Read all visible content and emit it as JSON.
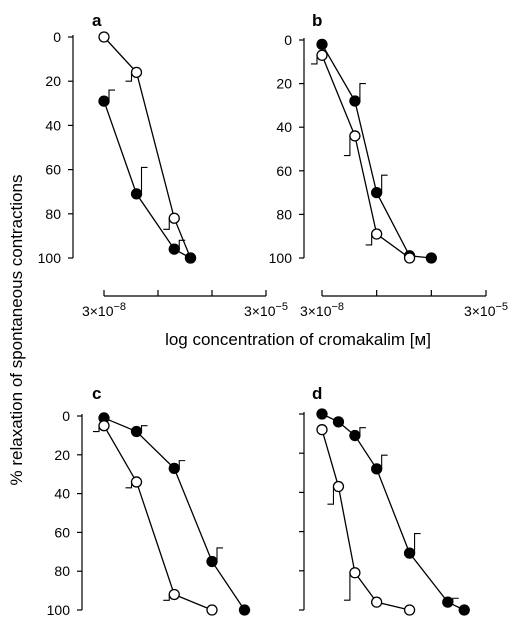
{
  "figure": {
    "ylabel": "% relaxation of spontaneous contractions",
    "xlabel": "log concentration of cromakalim [м]"
  },
  "chart_data": [
    {
      "panel": "a",
      "type": "line",
      "x_tick_labels": [
        "3×10−8",
        "3×10−5"
      ],
      "x_ticks": [
        -7.523,
        -4.523
      ],
      "y_tick_labels": [
        "0",
        "20",
        "40",
        "60",
        "80",
        "100"
      ],
      "ylim": [
        0,
        100
      ],
      "y_inverted": true,
      "series": [
        {
          "marker": "open-circle",
          "x": [
            -7.523,
            -6.921,
            -6.222,
            -5.921
          ],
          "y": [
            0,
            16,
            82,
            100
          ],
          "err": [
            0,
            4,
            5,
            0
          ]
        },
        {
          "marker": "filled-circle",
          "x": [
            -7.523,
            -6.921,
            -6.222,
            -5.921
          ],
          "y": [
            29,
            71,
            96,
            100
          ],
          "err": [
            5,
            12,
            4,
            0
          ]
        }
      ]
    },
    {
      "panel": "b",
      "type": "line",
      "x_tick_labels": [
        "3×10−8",
        "3×10−5"
      ],
      "x_ticks": [
        -7.523,
        -4.523
      ],
      "y_tick_labels": [
        "0",
        "20",
        "40",
        "60",
        "80",
        "100"
      ],
      "ylim": [
        0,
        100
      ],
      "y_inverted": true,
      "series": [
        {
          "marker": "filled-circle",
          "x": [
            -7.523,
            -6.921,
            -6.523,
            -5.921,
            -5.523
          ],
          "y": [
            2,
            28,
            70,
            99,
            100
          ],
          "err": [
            0,
            8,
            8,
            0,
            0
          ]
        },
        {
          "marker": "open-circle",
          "x": [
            -7.523,
            -6.921,
            -6.523,
            -5.921
          ],
          "y": [
            7,
            44,
            89,
            100
          ],
          "err": [
            4,
            9,
            5,
            0
          ]
        }
      ]
    },
    {
      "panel": "c",
      "type": "line",
      "x_tick_labels": [],
      "x_ticks": [],
      "y_tick_labels": [
        "0",
        "20",
        "40",
        "60",
        "80",
        "100"
      ],
      "ylim": [
        0,
        100
      ],
      "y_inverted": true,
      "series": [
        {
          "marker": "filled-circle",
          "x": [
            -7.523,
            -6.921,
            -6.222,
            -5.523,
            -4.921
          ],
          "y": [
            1,
            8,
            27,
            75,
            100
          ],
          "err": [
            0,
            3,
            4,
            7,
            0
          ]
        },
        {
          "marker": "open-circle",
          "x": [
            -7.523,
            -6.921,
            -6.222,
            -5.523
          ],
          "y": [
            5,
            34,
            92,
            100
          ],
          "err": [
            3,
            3,
            3,
            0
          ]
        }
      ]
    },
    {
      "panel": "d",
      "type": "line",
      "x_tick_labels": [],
      "x_ticks": [],
      "y_tick_labels": [],
      "ylim": [
        0,
        100
      ],
      "y_inverted": true,
      "series": [
        {
          "marker": "filled-circle",
          "x": [
            -7.523,
            -7.222,
            -6.921,
            -6.523,
            -5.921,
            -5.222,
            -4.921
          ],
          "y": [
            0,
            4,
            11,
            28,
            71,
            96,
            100
          ],
          "err": [
            0,
            0,
            4,
            7,
            10,
            2,
            0
          ]
        },
        {
          "marker": "open-circle",
          "x": [
            -7.523,
            -7.222,
            -6.921,
            -6.523,
            -5.921
          ],
          "y": [
            8,
            37,
            81,
            96,
            100
          ],
          "err": [
            0,
            9,
            14,
            0,
            0
          ]
        }
      ]
    }
  ]
}
